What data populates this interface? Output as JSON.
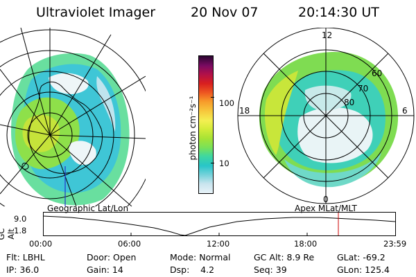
{
  "header": {
    "instrument": "Ultraviolet Imager",
    "date": "20 Nov 07",
    "time": "20:14:30 UT"
  },
  "colorbar": {
    "unit_label": "photon cm⁻²s⁻¹",
    "ticks": [
      "100",
      "10"
    ],
    "colors": [
      "#e8f2f8",
      "#c8e4ee",
      "#7ad3db",
      "#28c5c9",
      "#3fd7a0",
      "#77e15a",
      "#a7e335",
      "#d5ec3a",
      "#f4ef52",
      "#f7c73c",
      "#f79a2a",
      "#ee5a21",
      "#d91f1f",
      "#b0104a",
      "#7a0a62",
      "#2a0630"
    ]
  },
  "left_map": {
    "label": "Geographic Lat/Lon"
  },
  "right_map": {
    "label": "Apex MLat/MLT",
    "mlt_labels": {
      "top": "12",
      "bottom": "0",
      "left": "18",
      "right": "6"
    },
    "lat_labels": [
      "60",
      "70",
      "80"
    ]
  },
  "timeline": {
    "y_axis_label": "GC Alt",
    "y_ticks": [
      "9.0",
      "1.8"
    ],
    "x_ticks": [
      "00:00",
      "06:00",
      "12:00",
      "18:00",
      "23:59"
    ],
    "current_marker_color": "#cc0000"
  },
  "footer": {
    "row1": {
      "filter": "Flt: LBHL",
      "door": "Door: Open",
      "mode": "Mode: Normal",
      "gc_alt": "GC Alt: 8.9 Re",
      "glat": "GLat: -69.2"
    },
    "row2": {
      "ip": "IP: 36.0",
      "gain": "Gain: 14",
      "dsp": "Dsp:    4.2",
      "seq": "Seq: 39",
      "glon": "GLon: 125.4"
    }
  }
}
